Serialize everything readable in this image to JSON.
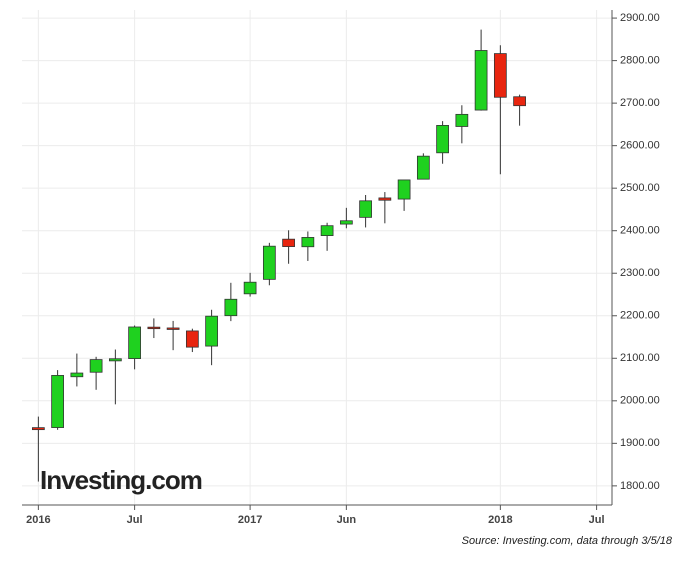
{
  "chart_data": {
    "type": "candlestick",
    "watermark": "Investing.com",
    "source": "Source: Investing.com, data through 3/5/18",
    "x": [
      0,
      1,
      2,
      3,
      4,
      5,
      6,
      7,
      8,
      9,
      10,
      11,
      12,
      13,
      14,
      15,
      16,
      17,
      18,
      19,
      20,
      21,
      22,
      23,
      24,
      25
    ],
    "open": [
      1936.9,
      1937.1,
      2056.6,
      2067.2,
      2093.9,
      2099.3,
      2173.2,
      2171.3,
      2164.3,
      2128.7,
      2200.2,
      2251.6,
      2285.6,
      2380.1,
      2362.3,
      2388.5,
      2415.6,
      2431.4,
      2477.1,
      2474.4,
      2521.2,
      2583.2,
      2645.1,
      2683.7,
      2816.5,
      2715.0
    ],
    "high": [
      1962.9,
      2072.2,
      2111.1,
      2103.5,
      2120.6,
      2177.1,
      2193.8,
      2187.9,
      2169.6,
      2214.1,
      2277.5,
      2300.9,
      2371.5,
      2401.0,
      2398.2,
      2418.7,
      2453.8,
      2484.0,
      2490.9,
      2519.4,
      2582.0,
      2657.7,
      2695.0,
      2872.9,
      2836.0,
      2720.0
    ],
    "low": [
      1810.1,
      1931.8,
      2033.8,
      2025.9,
      1991.7,
      2074.0,
      2147.6,
      2119.1,
      2114.7,
      2083.8,
      2187.4,
      2245.1,
      2271.7,
      2322.3,
      2328.9,
      2352.7,
      2405.7,
      2407.7,
      2417.4,
      2446.6,
      2520.4,
      2557.5,
      2605.5,
      2682.4,
      2532.7,
      2647.0
    ],
    "close": [
      1932.2,
      2059.7,
      2065.3,
      2096.9,
      2098.9,
      2173.6,
      2170.9,
      2168.3,
      2126.2,
      2199.0,
      2238.8,
      2278.9,
      2363.6,
      2362.7,
      2384.2,
      2411.8,
      2423.4,
      2470.3,
      2471.7,
      2519.4,
      2575.3,
      2647.6,
      2673.6,
      2823.8,
      2713.8,
      2694.0
    ],
    "up_color": "#1fd11f",
    "down_color": "#e8250f",
    "xlim": [
      -0.85,
      29.8
    ],
    "xticks": [
      {
        "value": 0,
        "label": "2016"
      },
      {
        "value": 5,
        "label": "Jul"
      },
      {
        "value": 11,
        "label": "2017"
      },
      {
        "value": 16,
        "label": "Jun"
      },
      {
        "value": 24,
        "label": "2018"
      },
      {
        "value": 29,
        "label": "Jul"
      }
    ],
    "ylim": [
      1755,
      2919
    ],
    "yticks": [
      {
        "value": 1800,
        "label": "1800.00"
      },
      {
        "value": 1900,
        "label": "1900.00"
      },
      {
        "value": 2000,
        "label": "2000.00"
      },
      {
        "value": 2100,
        "label": "2100.00"
      },
      {
        "value": 2200,
        "label": "2200.00"
      },
      {
        "value": 2300,
        "label": "2300.00"
      },
      {
        "value": 2400,
        "label": "2400.00"
      },
      {
        "value": 2500,
        "label": "2500.00"
      },
      {
        "value": 2600,
        "label": "2600.00"
      },
      {
        "value": 2700,
        "label": "2700.00"
      },
      {
        "value": 2800,
        "label": "2800.00"
      },
      {
        "value": 2900,
        "label": "2900.00"
      }
    ],
    "grid": true
  }
}
